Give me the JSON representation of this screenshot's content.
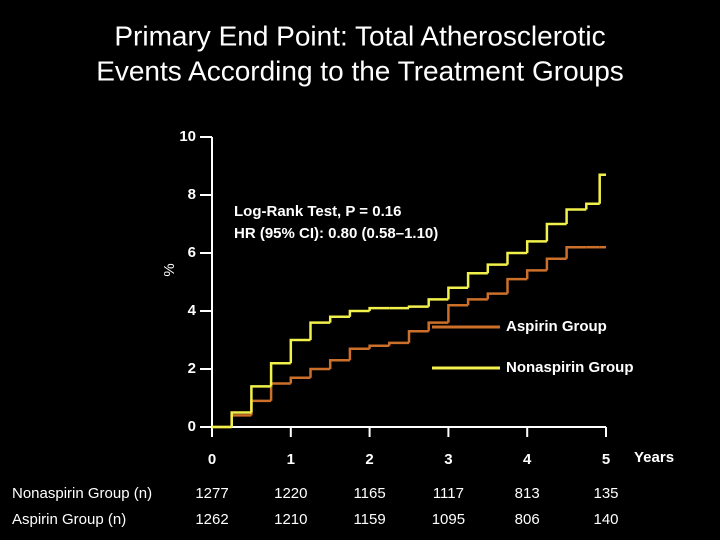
{
  "chart_data": {
    "type": "line",
    "title": [
      "Primary End Point: Total Atherosclerotic",
      "Events According to the Treatment Groups"
    ],
    "y_label": "%",
    "x_label": "Years",
    "annotations": [
      "Log-Rank Test, P = 0.16",
      "HR (95% CI): 0.80 (0.58–1.10)"
    ],
    "x": [
      0,
      0.25,
      0.5,
      0.75,
      1,
      1.25,
      1.5,
      1.75,
      2,
      2.25,
      2.5,
      2.75,
      3,
      3.25,
      3.5,
      3.75,
      4,
      4.25,
      4.5,
      4.75,
      4.92,
      5
    ],
    "series": [
      {
        "name": "Aspirin Group",
        "color": "#cc6f2a",
        "values": [
          0,
          0.4,
          0.9,
          1.5,
          1.7,
          2.0,
          2.3,
          2.7,
          2.8,
          2.9,
          3.3,
          3.6,
          4.2,
          4.4,
          4.6,
          5.1,
          5.4,
          5.8,
          6.2,
          6.2,
          6.2,
          6.2
        ]
      },
      {
        "name": "Nonaspirin Group",
        "color": "#f2f04a",
        "values": [
          0,
          0.5,
          1.4,
          2.2,
          3.0,
          3.6,
          3.8,
          4.0,
          4.1,
          4.1,
          4.15,
          4.4,
          4.8,
          5.3,
          5.6,
          6.0,
          6.4,
          7.0,
          7.5,
          7.7,
          8.7,
          8.7
        ]
      }
    ],
    "xlim": [
      0,
      5
    ],
    "xticks": [
      0,
      1,
      2,
      3,
      4,
      5
    ],
    "ylim": [
      0,
      10
    ],
    "yticks": [
      0,
      2,
      4,
      6,
      8,
      10
    ],
    "risk_table": {
      "rows": [
        {
          "label": "Nonaspirin Group (n)",
          "values": [
            1277,
            1220,
            1165,
            1117,
            813,
            135
          ]
        },
        {
          "label": "Aspirin Group (n)",
          "values": [
            1262,
            1210,
            1159,
            1095,
            806,
            140
          ]
        }
      ]
    }
  }
}
